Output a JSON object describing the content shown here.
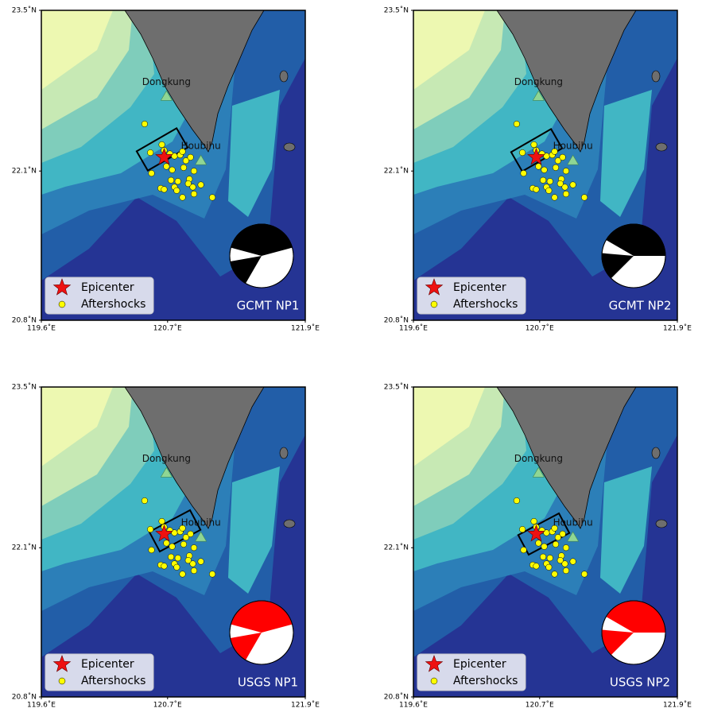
{
  "xlim": [
    119.6,
    121.9
  ],
  "ylim": [
    20.8,
    23.5
  ],
  "xticks": [
    {
      "value": 119.6,
      "label": "119.6˚E"
    },
    {
      "value": 120.7,
      "label": "120.7˚E"
    },
    {
      "value": 121.9,
      "label": "121.9˚E"
    }
  ],
  "yticks": [
    {
      "value": 23.5,
      "label": "23.5˚N"
    },
    {
      "value": 22.1,
      "label": "22.1˚N"
    },
    {
      "value": 20.8,
      "label": "20.8˚N"
    }
  ],
  "places": [
    {
      "name": "Dongkung",
      "lon": 120.69,
      "lat": 22.75
    },
    {
      "name": "Houbihu",
      "lon": 120.99,
      "lat": 22.19
    }
  ],
  "epicenter": {
    "lon": 120.67,
    "lat": 22.22,
    "color": "#ee1111"
  },
  "aftershocks": {
    "color": "#ffff00",
    "points": [
      {
        "lon": 120.5,
        "lat": 22.51
      },
      {
        "lon": 120.55,
        "lat": 22.26
      },
      {
        "lon": 120.65,
        "lat": 22.33
      },
      {
        "lon": 120.67,
        "lat": 22.28
      },
      {
        "lon": 120.72,
        "lat": 22.25
      },
      {
        "lon": 120.76,
        "lat": 22.23
      },
      {
        "lon": 120.81,
        "lat": 22.24
      },
      {
        "lon": 120.83,
        "lat": 22.27
      },
      {
        "lon": 120.86,
        "lat": 22.19
      },
      {
        "lon": 120.9,
        "lat": 22.22
      },
      {
        "lon": 120.69,
        "lat": 22.14
      },
      {
        "lon": 120.74,
        "lat": 22.11
      },
      {
        "lon": 120.84,
        "lat": 22.13
      },
      {
        "lon": 120.93,
        "lat": 22.1
      },
      {
        "lon": 120.56,
        "lat": 22.08
      },
      {
        "lon": 120.73,
        "lat": 22.02
      },
      {
        "lon": 120.79,
        "lat": 22.01
      },
      {
        "lon": 120.89,
        "lat": 22.03
      },
      {
        "lon": 120.88,
        "lat": 21.99
      },
      {
        "lon": 120.92,
        "lat": 21.96
      },
      {
        "lon": 120.99,
        "lat": 21.98
      },
      {
        "lon": 120.64,
        "lat": 21.95
      },
      {
        "lon": 120.67,
        "lat": 21.94
      },
      {
        "lon": 120.76,
        "lat": 21.96
      },
      {
        "lon": 120.78,
        "lat": 21.93
      },
      {
        "lon": 120.83,
        "lat": 21.87
      },
      {
        "lon": 120.93,
        "lat": 21.9
      },
      {
        "lon": 121.09,
        "lat": 21.87
      }
    ]
  },
  "legend": {
    "epicenter": "Epicenter",
    "aftershocks": "Aftershocks"
  },
  "panels": [
    {
      "label": "GCMT NP1",
      "color": "#000000"
    },
    {
      "label": "GCMT NP2",
      "color": "#000000"
    },
    {
      "label": "USGS NP1",
      "color": "#ff0000"
    },
    {
      "label": "USGS NP2",
      "color": "#ff0000"
    }
  ]
}
